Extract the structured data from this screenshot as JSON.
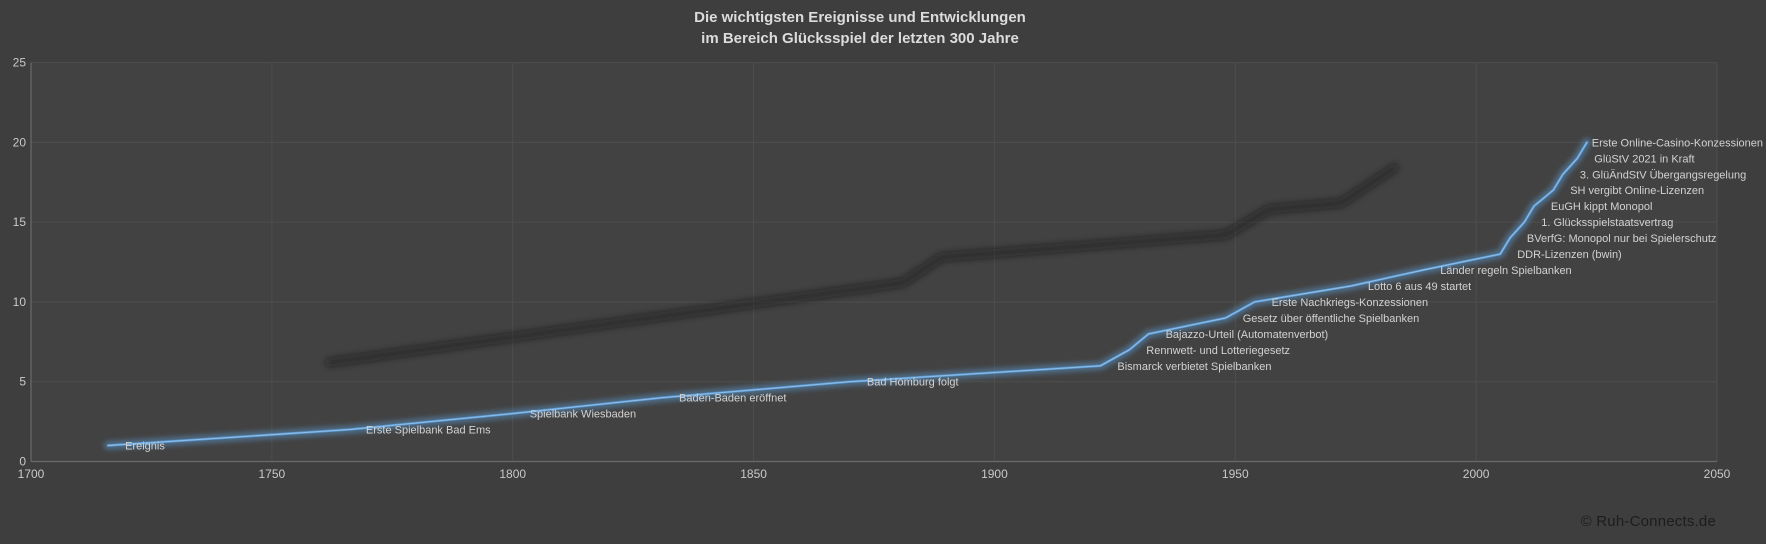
{
  "title": {
    "line1": "Die wichtigsten Ereignisse und Entwicklungen",
    "line2": "im Bereich Glücksspiel der letzten 300 Jahre"
  },
  "footer": {
    "credit": "© Ruh-Connects.de"
  },
  "colors": {
    "background": "#3e3e3e",
    "plot_background": "#424242",
    "gridline": "#4e4e4e",
    "axis_line": "#6a6a6a",
    "tick_text": "#c9c9c9",
    "label_text": "#d2d2d2",
    "title_text": "#dcdcdc",
    "line_blue": "#5b9bd5",
    "line_glow": "#7fb2e0",
    "shadow": "#161616",
    "credit_text": "#1d1d1d"
  },
  "chart_data": {
    "type": "line",
    "title": "Die wichtigsten Ereignisse und Entwicklungen im Bereich Glücksspiel der letzten 300 Jahre",
    "xlabel": "",
    "ylabel": "",
    "grid": true,
    "legend": "none",
    "x_axis": {
      "min": 1700,
      "max": 2050,
      "tick_step": 50,
      "ticks": [
        1700,
        1750,
        1800,
        1850,
        1900,
        1950,
        2000,
        2050
      ]
    },
    "y_axis": {
      "min": 0,
      "max": 25,
      "tick_step": 5,
      "ticks": [
        0,
        5,
        10,
        15,
        20,
        25
      ]
    },
    "series_name": "Ereignis",
    "events": [
      {
        "year": 1716,
        "value": 1,
        "label": "Ereignis"
      },
      {
        "year": 1766,
        "value": 2,
        "label": "Erste Spielbank Bad Ems"
      },
      {
        "year": 1800,
        "value": 3,
        "label": "Spielbank Wiesbaden"
      },
      {
        "year": 1831,
        "value": 4,
        "label": "Baden-Baden eröffnet"
      },
      {
        "year": 1870,
        "value": 5,
        "label": "Bad Homburg folgt"
      },
      {
        "year": 1922,
        "value": 6,
        "label": "Bismarck verbietet Spielbanken"
      },
      {
        "year": 1928,
        "value": 7,
        "label": "Rennwett- und Lotteriegesetz"
      },
      {
        "year": 1932,
        "value": 8,
        "label": "Bajazzo-Urteil (Automatenverbot)"
      },
      {
        "year": 1948,
        "value": 9,
        "label": "Gesetz über öffentliche Spielbanken"
      },
      {
        "year": 1954,
        "value": 10,
        "label": "Erste Nachkriegs-Konzessionen"
      },
      {
        "year": 1974,
        "value": 11,
        "label": "Lotto 6 aus 49 startet"
      },
      {
        "year": 1989,
        "value": 12,
        "label": "Länder regeln Spielbanken"
      },
      {
        "year": 2005,
        "value": 13,
        "label": "DDR-Lizenzen (bwin)"
      },
      {
        "year": 2007,
        "value": 14,
        "label": "BVerfG: Monopol nur bei Spielerschutz"
      },
      {
        "year": 2010,
        "value": 15,
        "label": "1. Glücksspielstaatsvertrag"
      },
      {
        "year": 2012,
        "value": 16,
        "label": "EuGH kippt Monopol"
      },
      {
        "year": 2016,
        "value": 17,
        "label": "SH vergibt Online-Lizenzen"
      },
      {
        "year": 2018,
        "value": 18,
        "label": "3. GlüÄndStV Übergangsregelung"
      },
      {
        "year": 2021,
        "value": 19,
        "label": "GlüStV 2021 in Kraft"
      },
      {
        "year": 2023,
        "value": 20,
        "label": "Erste Online-Casino-Konzessionen"
      }
    ],
    "shadow_line": [
      [
        1762,
        6.2
      ],
      [
        1881,
        11.2
      ],
      [
        1889,
        12.8
      ],
      [
        1948,
        14.2
      ],
      [
        1957,
        15.8
      ],
      [
        1972,
        16.2
      ],
      [
        1983,
        18.4
      ]
    ]
  }
}
